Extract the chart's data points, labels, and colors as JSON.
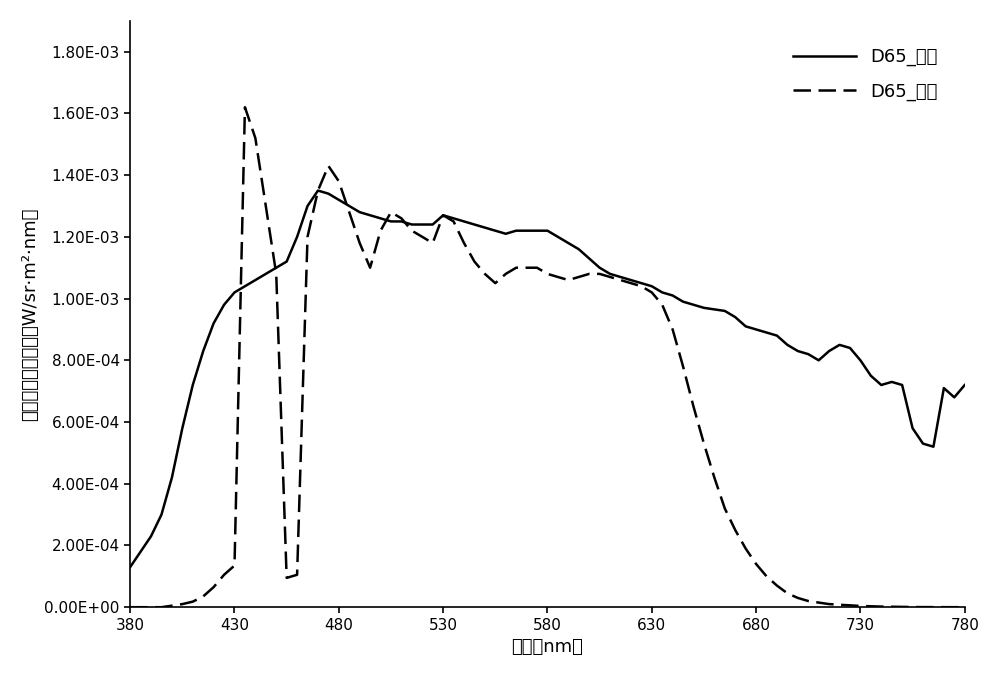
{
  "xlabel": "波长（nm）",
  "ylabel": "光谱辐射亮度分布（W/sr·m²·nm）",
  "xlim": [
    380,
    780
  ],
  "ylim": [
    0.0,
    0.0019
  ],
  "xticks": [
    380,
    430,
    480,
    530,
    580,
    630,
    680,
    730,
    780
  ],
  "yticks": [
    0.0,
    0.0002,
    0.0004,
    0.0006,
    0.0008,
    0.001,
    0.0012,
    0.0014,
    0.0016,
    0.0018
  ],
  "ytick_labels": [
    "0.00E+00",
    "2.00E-04",
    "4.00E-04",
    "6.00E-04",
    "8.00E-04",
    "1.00E-03",
    "1.20E-03",
    "1.40E-03",
    "1.60E-03",
    "1.80E-03"
  ],
  "legend_solid": "D65_目标",
  "legend_dashed": "D65_匹配",
  "background": "#ffffff",
  "line_color": "#000000",
  "solid_x": [
    380,
    385,
    390,
    395,
    400,
    405,
    410,
    415,
    420,
    425,
    430,
    435,
    440,
    445,
    450,
    455,
    460,
    465,
    470,
    475,
    480,
    485,
    490,
    495,
    500,
    505,
    510,
    515,
    520,
    525,
    530,
    535,
    540,
    545,
    550,
    555,
    560,
    565,
    570,
    575,
    580,
    585,
    590,
    595,
    600,
    605,
    610,
    615,
    620,
    625,
    630,
    635,
    640,
    645,
    650,
    655,
    660,
    665,
    670,
    675,
    680,
    685,
    690,
    695,
    700,
    705,
    710,
    715,
    720,
    725,
    730,
    735,
    740,
    745,
    750,
    755,
    760,
    765,
    770,
    775,
    780
  ],
  "solid_y": [
    0.00013,
    0.00018,
    0.00023,
    0.0003,
    0.00042,
    0.00058,
    0.00072,
    0.00083,
    0.00092,
    0.00098,
    0.00102,
    0.00104,
    0.00106,
    0.00108,
    0.0011,
    0.00112,
    0.0012,
    0.0013,
    0.00135,
    0.00134,
    0.00132,
    0.0013,
    0.00128,
    0.00127,
    0.00126,
    0.00125,
    0.00125,
    0.00124,
    0.00124,
    0.00124,
    0.00127,
    0.00126,
    0.00125,
    0.00124,
    0.00123,
    0.00122,
    0.00121,
    0.00122,
    0.00122,
    0.00122,
    0.00122,
    0.0012,
    0.00118,
    0.00116,
    0.00113,
    0.0011,
    0.00108,
    0.00107,
    0.00106,
    0.00105,
    0.00104,
    0.00102,
    0.00101,
    0.00099,
    0.00098,
    0.00097,
    0.000965,
    0.00096,
    0.00094,
    0.00091,
    0.0009,
    0.00089,
    0.00088,
    0.00085,
    0.00083,
    0.00082,
    0.0008,
    0.00083,
    0.00085,
    0.00084,
    0.0008,
    0.00075,
    0.00072,
    0.00073,
    0.00072,
    0.00058,
    0.00053,
    0.00052,
    0.00071,
    0.00068,
    0.00072
  ],
  "dashed_x": [
    380,
    385,
    390,
    395,
    400,
    405,
    410,
    415,
    420,
    425,
    430,
    435,
    440,
    445,
    450,
    455,
    460,
    465,
    470,
    475,
    480,
    485,
    490,
    495,
    500,
    505,
    510,
    515,
    520,
    525,
    530,
    535,
    540,
    545,
    550,
    555,
    560,
    565,
    570,
    575,
    580,
    585,
    590,
    595,
    600,
    605,
    610,
    615,
    620,
    625,
    630,
    635,
    640,
    645,
    650,
    655,
    660,
    665,
    670,
    675,
    680,
    685,
    690,
    695,
    700,
    705,
    710,
    715,
    720,
    725,
    730,
    735,
    740,
    745,
    750,
    755,
    760,
    765,
    770,
    775,
    780
  ],
  "dashed_y": [
    0.0,
    0.0,
    0.0,
    0.0,
    5e-06,
    1e-05,
    1.8e-05,
    3.5e-05,
    6.5e-05,
    0.000105,
    0.000135,
    0.00162,
    0.00152,
    0.0013,
    0.00108,
    9.5e-05,
    0.000105,
    0.0012,
    0.00135,
    0.00143,
    0.00138,
    0.00128,
    0.00118,
    0.0011,
    0.00122,
    0.00128,
    0.00126,
    0.00122,
    0.0012,
    0.00118,
    0.00127,
    0.00125,
    0.00118,
    0.00112,
    0.00108,
    0.00105,
    0.00108,
    0.0011,
    0.0011,
    0.0011,
    0.00108,
    0.00107,
    0.00106,
    0.00107,
    0.00108,
    0.00108,
    0.00107,
    0.00106,
    0.00105,
    0.00104,
    0.00102,
    0.00098,
    0.0009,
    0.00078,
    0.00065,
    0.00053,
    0.00042,
    0.00032,
    0.00025,
    0.00019,
    0.00014,
    0.0001,
    7e-05,
    4.5e-05,
    3e-05,
    2e-05,
    1.5e-05,
    1e-05,
    8e-06,
    6e-06,
    4e-06,
    3e-06,
    2e-06,
    1.5e-06,
    1e-06,
    5e-07,
    3e-07,
    2e-07,
    1e-07,
    5e-08,
    2e-08
  ]
}
